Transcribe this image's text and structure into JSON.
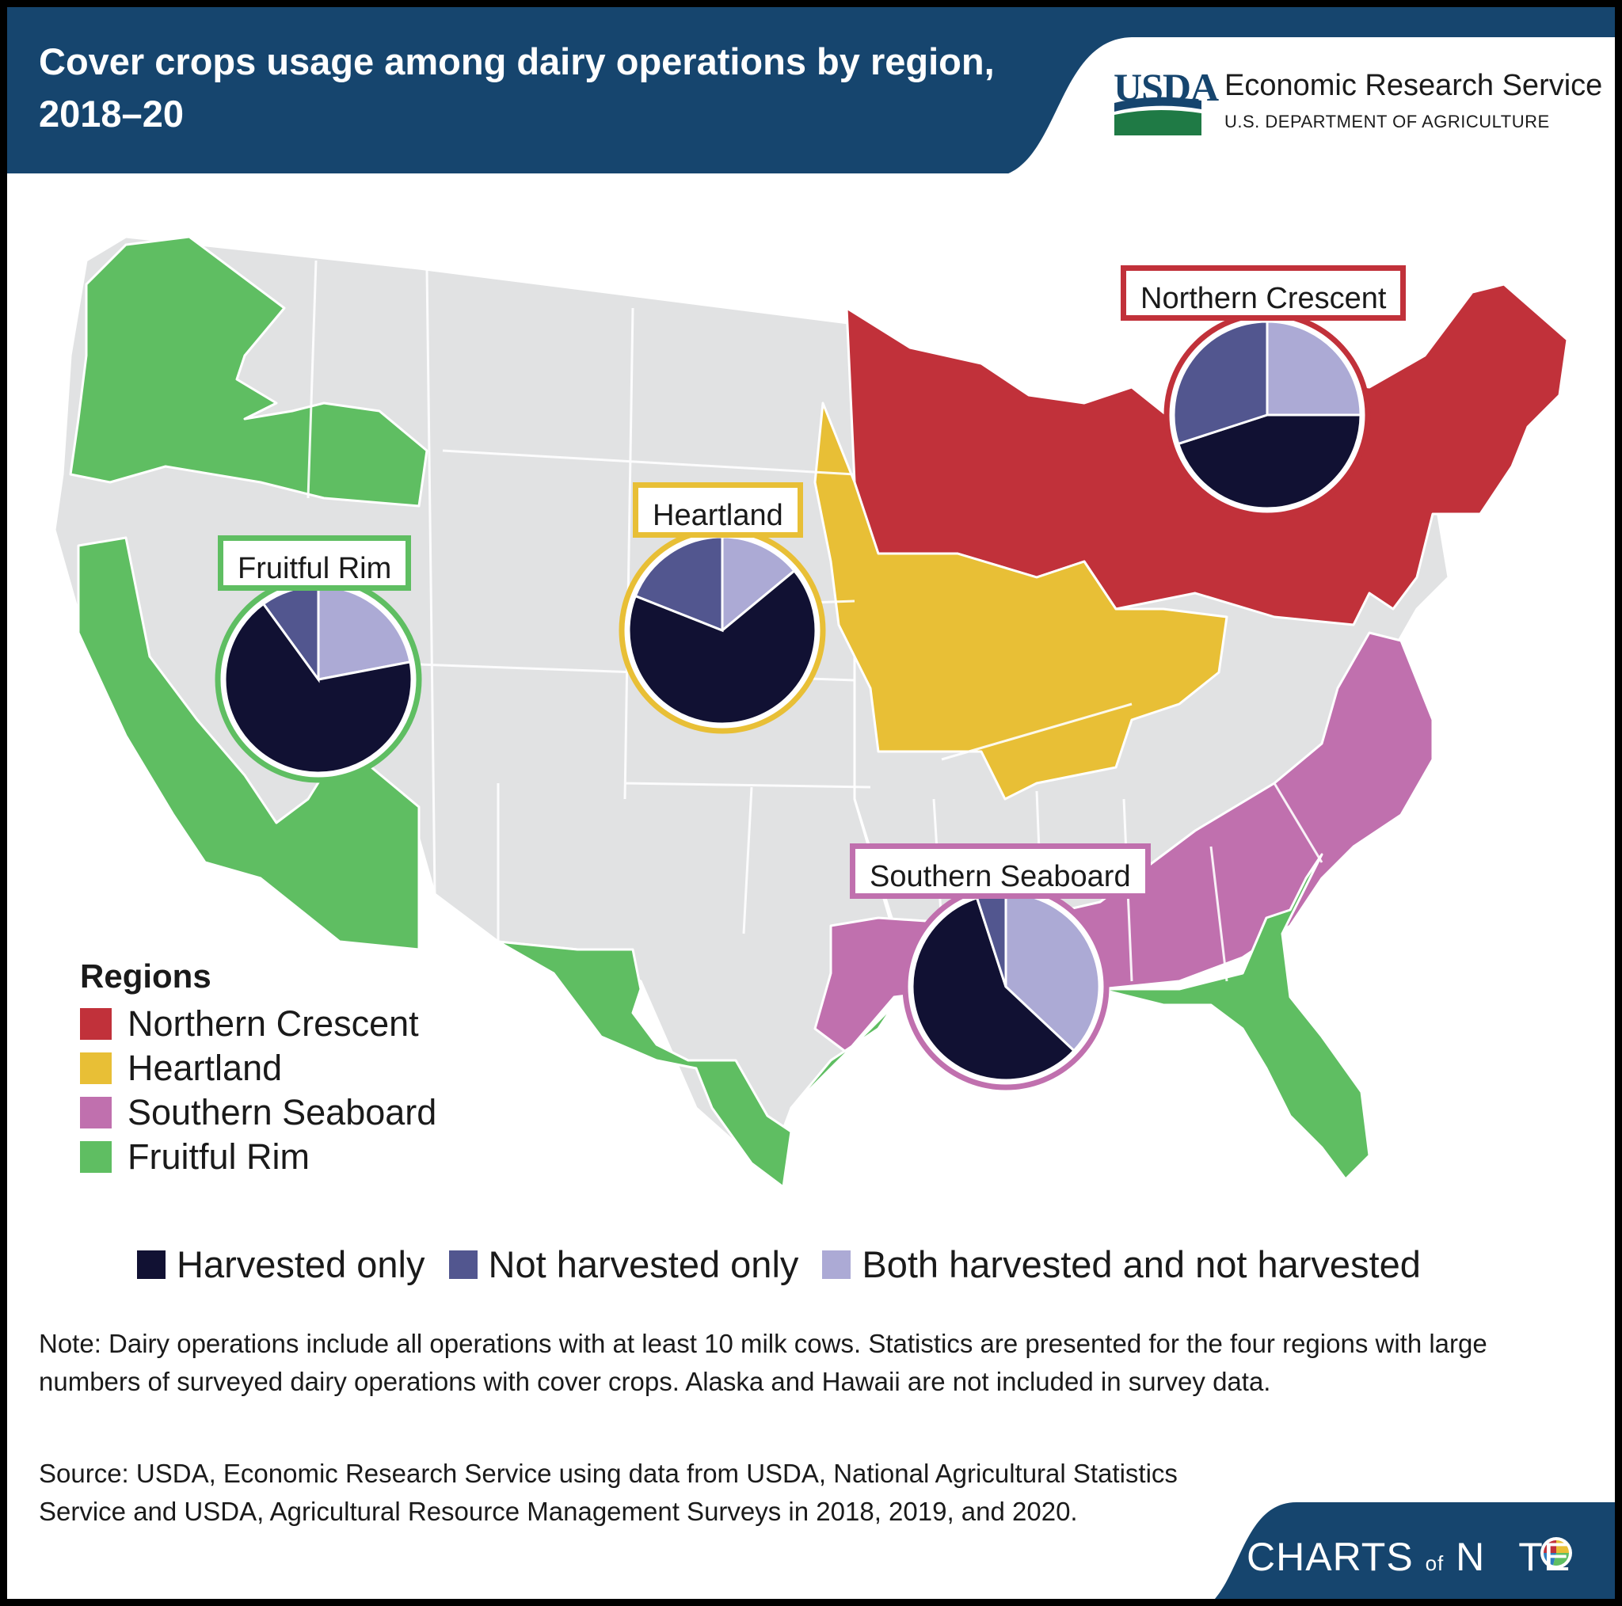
{
  "title": "Cover crops usage among dairy operations by region, 2018–20",
  "logo": {
    "letters": "USDA",
    "agency": "Economic Research Service",
    "department": "U.S. DEPARTMENT OF AGRICULTURE"
  },
  "colors": {
    "header": "#16456e",
    "northern_crescent": "#c1313a",
    "heartland": "#e8bf36",
    "southern_seaboard": "#c070ae",
    "fruitful_rim": "#5fbe62",
    "other": "#e1e2e3",
    "harvested_only": "#111133",
    "not_harvested_only": "#52568f",
    "both": "#acaad5"
  },
  "legend_regions": {
    "title": "Regions",
    "items": [
      "Northern Crescent",
      "Heartland",
      "Southern Seaboard",
      "Fruitful Rim"
    ]
  },
  "legend_pie": {
    "items": [
      "Harvested only",
      "Not harvested only",
      "Both harvested and not harvested"
    ]
  },
  "chart_data": {
    "type": "pie",
    "categories": [
      "Harvested only",
      "Not harvested only",
      "Both harvested and not harvested"
    ],
    "series": [
      {
        "name": "Northern Crescent",
        "values": [
          45,
          30,
          25
        ]
      },
      {
        "name": "Heartland",
        "values": [
          67,
          19,
          14
        ]
      },
      {
        "name": "Fruitful Rim",
        "values": [
          68,
          10,
          22
        ]
      },
      {
        "name": "Southern Seaboard",
        "values": [
          58,
          5,
          37
        ]
      }
    ]
  },
  "note": "Note: Dairy operations include all operations with at least 10 milk cows. Statistics are presented for the four regions with large numbers of surveyed dairy operations with cover crops. Alaska and Hawaii are not included in survey data.",
  "source": "Source: USDA, Economic Research Service using data from USDA, National Agricultural Statistics Service and USDA, Agricultural Resource Management Surveys in 2018, 2019, and 2020.",
  "footer": {
    "brand_main": "CHARTS",
    "brand_of": "of",
    "brand_end": "N",
    "brand_end2": "TE"
  }
}
